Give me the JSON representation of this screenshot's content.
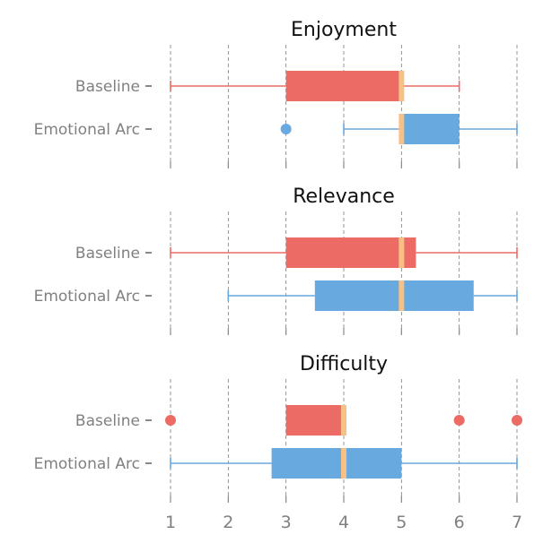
{
  "chart_data": {
    "type": "boxplot",
    "orientation": "horizontal",
    "xlim": [
      1,
      7
    ],
    "x_ticks": [
      "1",
      "2",
      "3",
      "4",
      "5",
      "6",
      "7"
    ],
    "grid": "vertical dashed",
    "colors": {
      "Baseline": "#ec6b65",
      "Emotional Arc": "#68a9e0",
      "median": "#f7c084",
      "grid": "#7a7a7a",
      "ticks": "#8a8a8a"
    },
    "panels": [
      {
        "title": "Enjoyment",
        "categories": [
          "Baseline",
          "Emotional Arc"
        ],
        "boxes": [
          {
            "name": "Baseline",
            "whislo": 1,
            "q1": 3,
            "median": 5,
            "q3": 5,
            "whishi": 6,
            "fliers": []
          },
          {
            "name": "Emotional Arc",
            "whislo": 4,
            "q1": 5,
            "median": 5,
            "q3": 6,
            "whishi": 7,
            "fliers": [
              3
            ]
          }
        ]
      },
      {
        "title": "Relevance",
        "categories": [
          "Baseline",
          "Emotional Arc"
        ],
        "boxes": [
          {
            "name": "Baseline",
            "whislo": 1,
            "q1": 3,
            "median": 5,
            "q3": 5.25,
            "whishi": 7,
            "fliers": []
          },
          {
            "name": "Emotional Arc",
            "whislo": 2,
            "q1": 3.5,
            "median": 5,
            "q3": 6.25,
            "whishi": 7,
            "fliers": []
          }
        ]
      },
      {
        "title": "Difficulty",
        "categories": [
          "Baseline",
          "Emotional Arc"
        ],
        "boxes": [
          {
            "name": "Baseline",
            "whislo": 3,
            "q1": 3,
            "median": 4,
            "q3": 4,
            "whishi": 4,
            "fliers": [
              1,
              6,
              7
            ]
          },
          {
            "name": "Emotional Arc",
            "whislo": 1,
            "q1": 2.75,
            "median": 4,
            "q3": 5,
            "whishi": 7,
            "fliers": []
          }
        ]
      }
    ]
  }
}
